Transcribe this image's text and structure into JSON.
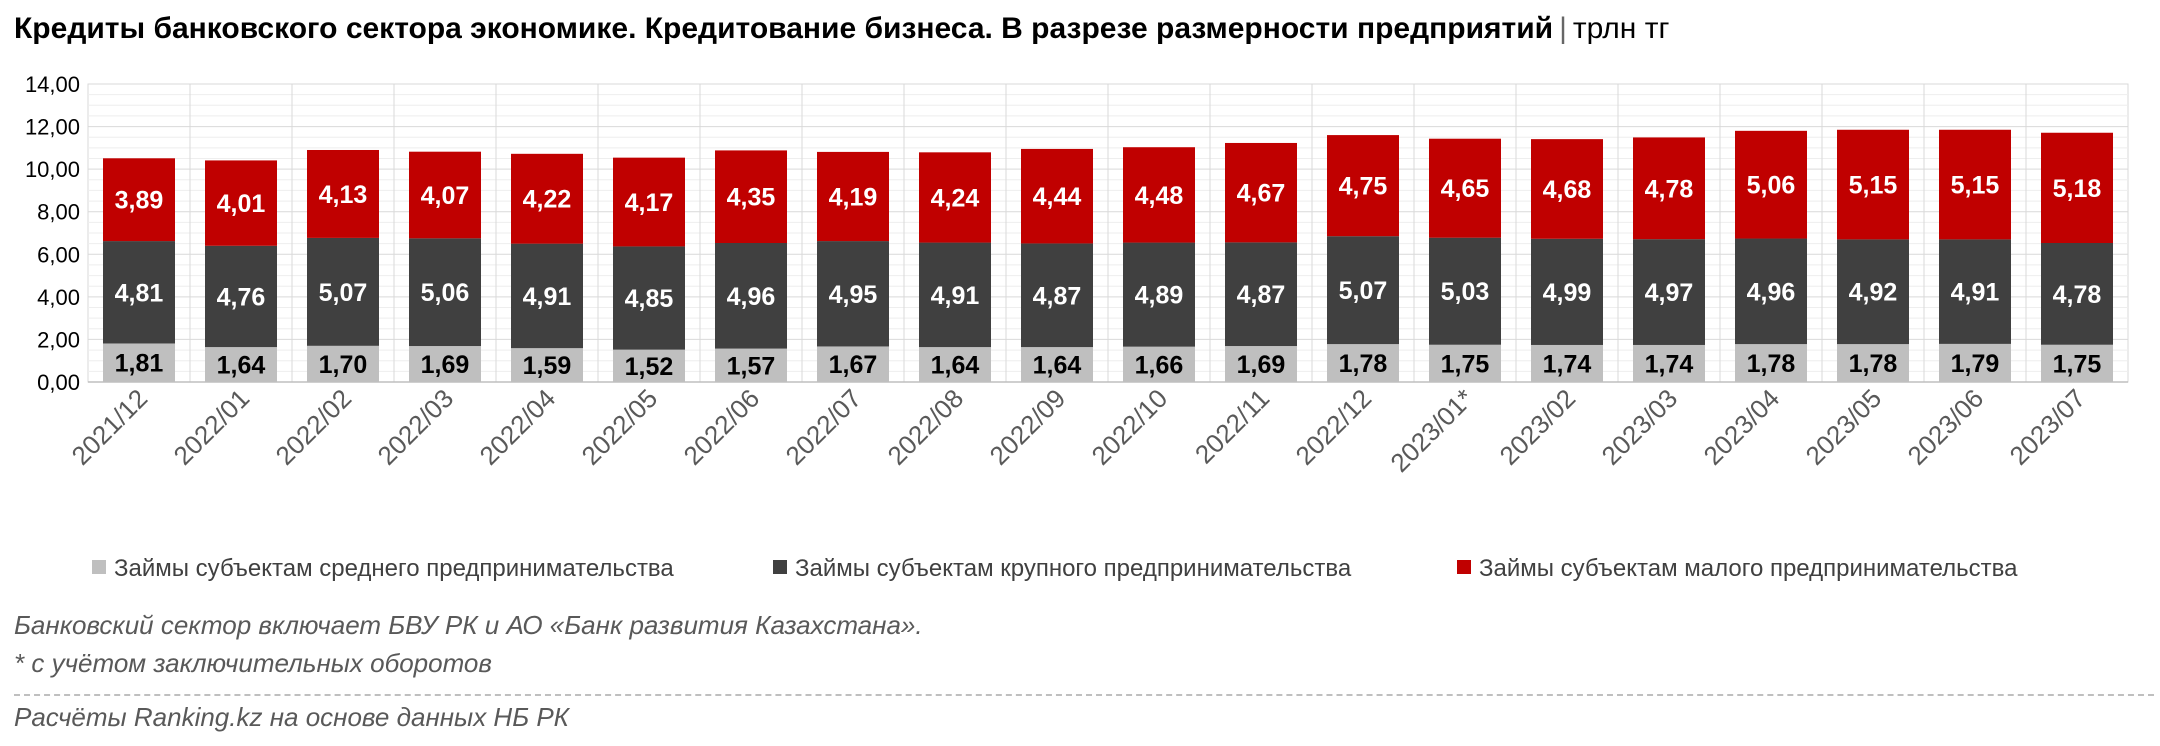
{
  "title": {
    "main": "Кредиты банковского сектора экономике. Кредитование бизнеса. В разрезе размерности предприятий",
    "separator": "|",
    "unit": "трлн тг"
  },
  "footnotes": {
    "note1": "Банковский сектор включает БВУ РК и АО «Банк развития Казахстана».",
    "note2": "* с учётом заключительных оборотов",
    "source": "Расчёты Ranking.kz на основе данных НБ РК"
  },
  "chart_data": {
    "type": "bar",
    "stacked": true,
    "categories": [
      "2021/12",
      "2022/01",
      "2022/02",
      "2022/03",
      "2022/04",
      "2022/05",
      "2022/06",
      "2022/07",
      "2022/08",
      "2022/09",
      "2022/10",
      "2022/11",
      "2022/12",
      "2023/01*",
      "2023/02",
      "2023/03",
      "2023/04",
      "2023/05",
      "2023/06",
      "2023/07"
    ],
    "series": [
      {
        "name": "Займы субъектам среднего предпринимательства",
        "color": "#bfbfbf",
        "values": [
          1.81,
          1.64,
          1.7,
          1.69,
          1.59,
          1.52,
          1.57,
          1.67,
          1.64,
          1.64,
          1.66,
          1.69,
          1.78,
          1.75,
          1.74,
          1.74,
          1.78,
          1.78,
          1.79,
          1.75
        ],
        "labels": [
          "1,81",
          "1,64",
          "1,70",
          "1,69",
          "1,59",
          "1,52",
          "1,57",
          "1,67",
          "1,64",
          "1,64",
          "1,66",
          "1,69",
          "1,78",
          "1,75",
          "1,74",
          "1,74",
          "1,78",
          "1,78",
          "1,79",
          "1,75"
        ]
      },
      {
        "name": "Займы субъектам крупного предпринимательства",
        "color": "#404040",
        "values": [
          4.81,
          4.76,
          5.07,
          5.06,
          4.91,
          4.85,
          4.96,
          4.95,
          4.91,
          4.87,
          4.89,
          4.87,
          5.07,
          5.03,
          4.99,
          4.97,
          4.96,
          4.92,
          4.91,
          4.78
        ],
        "labels": [
          "4,81",
          "4,76",
          "5,07",
          "5,06",
          "4,91",
          "4,85",
          "4,96",
          "4,95",
          "4,91",
          "4,87",
          "4,89",
          "4,87",
          "5,07",
          "5,03",
          "4,99",
          "4,97",
          "4,96",
          "4,92",
          "4,91",
          "4,78"
        ]
      },
      {
        "name": "Займы субъектам малого предпринимательства",
        "color": "#c00000",
        "values": [
          3.89,
          4.01,
          4.13,
          4.07,
          4.22,
          4.17,
          4.35,
          4.19,
          4.24,
          4.44,
          4.48,
          4.67,
          4.75,
          4.65,
          4.68,
          4.78,
          5.06,
          5.15,
          5.15,
          5.18
        ],
        "labels": [
          "3,89",
          "4,01",
          "4,13",
          "4,07",
          "4,22",
          "4,17",
          "4,35",
          "4,19",
          "4,24",
          "4,44",
          "4,48",
          "4,67",
          "4,75",
          "4,65",
          "4,68",
          "4,78",
          "5,06",
          "5,15",
          "5,15",
          "5,18"
        ]
      }
    ],
    "ylim": [
      0,
      14
    ],
    "yticks": [
      "0,00",
      "2,00",
      "4,00",
      "6,00",
      "8,00",
      "10,00",
      "12,00",
      "14,00"
    ],
    "label_colors": {
      "light": "#000000",
      "dark": "#ffffff"
    },
    "grid": true,
    "legend": "bottom"
  }
}
